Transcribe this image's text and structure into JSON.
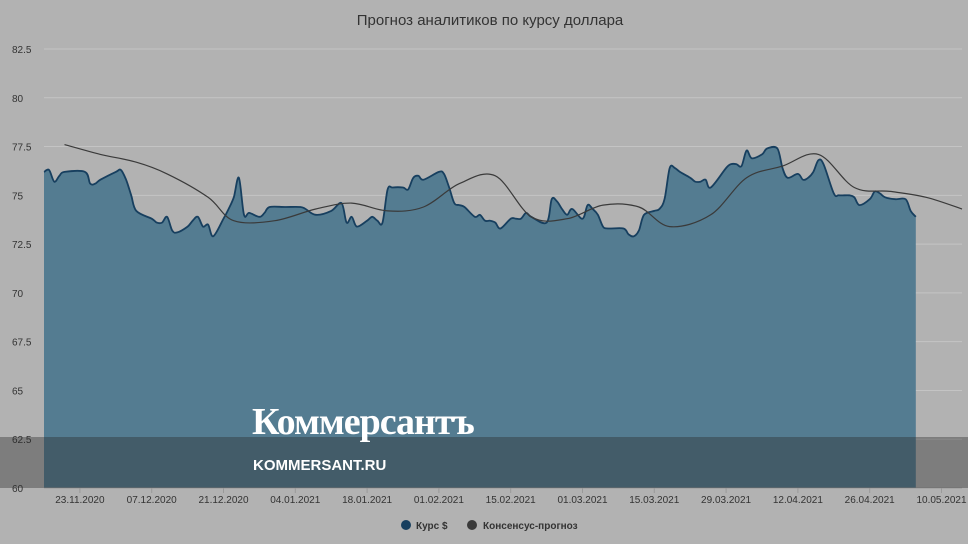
{
  "colors": {
    "background": "#b2b2b2",
    "area_fill": "#547c91",
    "area_stroke": "#173f5f",
    "consensus_line": "#3a3a3a",
    "grid": "#c4c4c4"
  },
  "branding": {
    "name": "Коммерсантъ",
    "url": "KOMMERSANT.RU"
  },
  "chart_data": {
    "type": "area",
    "title": "Прогноз аналитиков по курсу доллара",
    "ylim": [
      60,
      82.5
    ],
    "yticks": [
      "60",
      "62.5",
      "65",
      "67.5",
      "70",
      "72.5",
      "75",
      "77.5",
      "80",
      "82.5"
    ],
    "xlim": [
      "2020-11-16",
      "2021-05-14"
    ],
    "xticks": [
      "23.11.2020",
      "07.12.2020",
      "21.12.2020",
      "04.01.2021",
      "18.01.2021",
      "01.02.2021",
      "15.02.2021",
      "01.03.2021",
      "15.03.2021",
      "29.03.2021",
      "12.04.2021",
      "26.04.2021",
      "10.05.2021"
    ],
    "legend": {
      "position": "bottom"
    },
    "grid": true,
    "series": [
      {
        "name": "Курс $",
        "kind": "area",
        "points": [
          [
            "2020-11-16",
            76.2
          ],
          [
            "2020-11-17",
            76.3
          ],
          [
            "2020-11-18",
            75.7
          ],
          [
            "2020-11-19",
            76.0
          ],
          [
            "2020-11-20",
            76.2
          ],
          [
            "2020-11-24",
            76.2
          ],
          [
            "2020-11-25",
            75.6
          ],
          [
            "2020-11-26",
            75.6
          ],
          [
            "2020-11-27",
            75.8
          ],
          [
            "2020-11-30",
            76.2
          ],
          [
            "2020-12-01",
            76.3
          ],
          [
            "2020-12-02",
            75.8
          ],
          [
            "2020-12-03",
            75.0
          ],
          [
            "2020-12-04",
            74.2
          ],
          [
            "2020-12-07",
            73.8
          ],
          [
            "2020-12-08",
            73.6
          ],
          [
            "2020-12-09",
            73.6
          ],
          [
            "2020-12-10",
            73.9
          ],
          [
            "2020-12-11",
            73.2
          ],
          [
            "2020-12-12",
            73.1
          ],
          [
            "2020-12-14",
            73.4
          ],
          [
            "2020-12-15",
            73.7
          ],
          [
            "2020-12-16",
            73.9
          ],
          [
            "2020-12-17",
            73.4
          ],
          [
            "2020-12-18",
            73.5
          ],
          [
            "2020-12-19",
            72.9
          ],
          [
            "2020-12-21",
            73.8
          ],
          [
            "2020-12-22",
            74.3
          ],
          [
            "2020-12-23",
            74.9
          ],
          [
            "2020-12-24",
            75.9
          ],
          [
            "2020-12-25",
            74.0
          ],
          [
            "2020-12-26",
            74.1
          ],
          [
            "2020-12-28",
            73.9
          ],
          [
            "2020-12-29",
            74.1
          ],
          [
            "2020-12-30",
            74.4
          ],
          [
            "2021-01-02",
            74.4
          ],
          [
            "2021-01-05",
            74.4
          ],
          [
            "2021-01-06",
            74.3
          ],
          [
            "2021-01-08",
            74.0
          ],
          [
            "2021-01-11",
            74.2
          ],
          [
            "2021-01-13",
            74.6
          ],
          [
            "2021-01-14",
            73.6
          ],
          [
            "2021-01-15",
            73.9
          ],
          [
            "2021-01-16",
            73.4
          ],
          [
            "2021-01-18",
            73.7
          ],
          [
            "2021-01-19",
            73.9
          ],
          [
            "2021-01-20",
            73.7
          ],
          [
            "2021-01-21",
            73.6
          ],
          [
            "2021-01-22",
            75.3
          ],
          [
            "2021-01-23",
            75.4
          ],
          [
            "2021-01-25",
            75.4
          ],
          [
            "2021-01-26",
            75.3
          ],
          [
            "2021-01-27",
            75.9
          ],
          [
            "2021-01-28",
            76.0
          ],
          [
            "2021-01-29",
            75.8
          ],
          [
            "2021-02-01",
            76.2
          ],
          [
            "2021-02-02",
            76.1
          ],
          [
            "2021-02-03",
            75.4
          ],
          [
            "2021-02-04",
            74.6
          ],
          [
            "2021-02-05",
            74.5
          ],
          [
            "2021-02-06",
            74.4
          ],
          [
            "2021-02-08",
            73.9
          ],
          [
            "2021-02-09",
            74.0
          ],
          [
            "2021-02-10",
            73.7
          ],
          [
            "2021-02-11",
            73.7
          ],
          [
            "2021-02-12",
            73.6
          ],
          [
            "2021-02-13",
            73.3
          ],
          [
            "2021-02-15",
            73.8
          ],
          [
            "2021-02-16",
            73.8
          ],
          [
            "2021-02-17",
            73.8
          ],
          [
            "2021-02-18",
            74.1
          ],
          [
            "2021-02-19",
            73.9
          ],
          [
            "2021-02-22",
            73.6
          ],
          [
            "2021-02-23",
            74.8
          ],
          [
            "2021-02-24",
            74.7
          ],
          [
            "2021-02-25",
            74.3
          ],
          [
            "2021-02-26",
            74.0
          ],
          [
            "2021-02-27",
            74.3
          ],
          [
            "2021-03-01",
            73.8
          ],
          [
            "2021-03-02",
            74.5
          ],
          [
            "2021-03-03",
            74.3
          ],
          [
            "2021-03-04",
            74.0
          ],
          [
            "2021-03-05",
            73.4
          ],
          [
            "2021-03-06",
            73.3
          ],
          [
            "2021-03-09",
            73.3
          ],
          [
            "2021-03-10",
            73.0
          ],
          [
            "2021-03-11",
            72.9
          ],
          [
            "2021-03-12",
            73.2
          ],
          [
            "2021-03-13",
            74.0
          ],
          [
            "2021-03-15",
            74.2
          ],
          [
            "2021-03-16",
            74.3
          ],
          [
            "2021-03-17",
            74.8
          ],
          [
            "2021-03-18",
            76.4
          ],
          [
            "2021-03-19",
            76.4
          ],
          [
            "2021-03-20",
            76.2
          ],
          [
            "2021-03-22",
            75.9
          ],
          [
            "2021-03-23",
            75.7
          ],
          [
            "2021-03-24",
            75.7
          ],
          [
            "2021-03-25",
            75.8
          ],
          [
            "2021-03-26",
            75.4
          ],
          [
            "2021-03-29",
            76.4
          ],
          [
            "2021-03-30",
            76.6
          ],
          [
            "2021-03-31",
            76.6
          ],
          [
            "2021-04-01",
            76.5
          ],
          [
            "2021-04-02",
            77.3
          ],
          [
            "2021-04-03",
            76.9
          ],
          [
            "2021-04-05",
            77.1
          ],
          [
            "2021-04-06",
            77.4
          ],
          [
            "2021-04-08",
            77.4
          ],
          [
            "2021-04-09",
            76.4
          ],
          [
            "2021-04-10",
            75.9
          ],
          [
            "2021-04-12",
            76.1
          ],
          [
            "2021-04-13",
            75.8
          ],
          [
            "2021-04-14",
            75.9
          ],
          [
            "2021-04-15",
            76.2
          ],
          [
            "2021-04-16",
            76.8
          ],
          [
            "2021-04-17",
            76.6
          ],
          [
            "2021-04-19",
            75.1
          ],
          [
            "2021-04-20",
            75.0
          ],
          [
            "2021-04-22",
            75.0
          ],
          [
            "2021-04-23",
            74.9
          ],
          [
            "2021-04-24",
            74.5
          ],
          [
            "2021-04-26",
            74.8
          ],
          [
            "2021-04-27",
            75.2
          ],
          [
            "2021-04-28",
            75.1
          ],
          [
            "2021-04-29",
            74.9
          ],
          [
            "2021-05-01",
            74.8
          ],
          [
            "2021-05-03",
            74.8
          ],
          [
            "2021-05-04",
            74.2
          ],
          [
            "2021-05-05",
            73.9
          ]
        ]
      },
      {
        "name": "Консенсус-прогноз",
        "kind": "line",
        "points": [
          [
            "2020-11-20",
            77.6
          ],
          [
            "2020-11-27",
            77.1
          ],
          [
            "2020-12-04",
            76.7
          ],
          [
            "2020-12-10",
            76.1
          ],
          [
            "2020-12-18",
            74.9
          ],
          [
            "2020-12-23",
            73.7
          ],
          [
            "2020-12-31",
            73.7
          ],
          [
            "2021-01-08",
            74.3
          ],
          [
            "2021-01-15",
            74.6
          ],
          [
            "2021-01-22",
            74.2
          ],
          [
            "2021-01-29",
            74.4
          ],
          [
            "2021-02-05",
            75.6
          ],
          [
            "2021-02-12",
            76.0
          ],
          [
            "2021-02-19",
            73.9
          ],
          [
            "2021-02-26",
            73.8
          ],
          [
            "2021-03-05",
            74.5
          ],
          [
            "2021-03-12",
            74.4
          ],
          [
            "2021-03-18",
            73.4
          ],
          [
            "2021-03-26",
            74.0
          ],
          [
            "2021-04-02",
            75.9
          ],
          [
            "2021-04-09",
            76.5
          ],
          [
            "2021-04-16",
            77.1
          ],
          [
            "2021-04-23",
            75.4
          ],
          [
            "2021-04-30",
            75.2
          ],
          [
            "2021-05-07",
            74.9
          ],
          [
            "2021-05-14",
            74.3
          ]
        ]
      }
    ]
  }
}
